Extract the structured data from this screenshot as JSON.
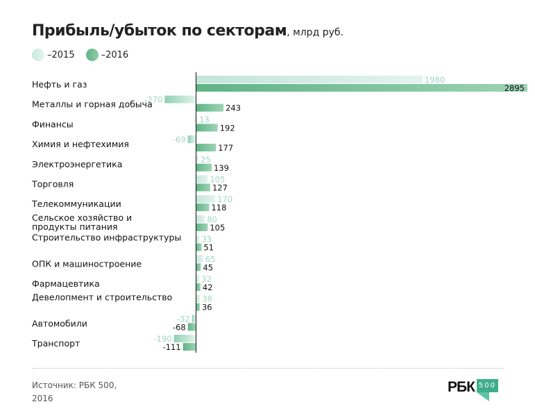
{
  "chart_data": {
    "type": "bar",
    "orientation": "horizontal",
    "title": "Прибыль/убыток по секторам",
    "title_unit": ", млрд руб.",
    "categories": [
      "Нефть и газ",
      "Металлы и горная добыча",
      "Финансы",
      "Химия и нефтехимия",
      "Электроэнергетика",
      "Торговля",
      "Телекоммуникации",
      "Сельское хозяйство и продукты питания",
      "Строительство инфраструктуры",
      "ОПК и машиностроение",
      "Фармацевтика",
      "Девелопмент и строительство",
      "Автомобили",
      "Транспорт"
    ],
    "series": [
      {
        "name": "2015",
        "legend": "–2015",
        "color": "#c7e8dd",
        "label_color": "#9fd6c4",
        "values": [
          1980,
          -270,
          13,
          -69,
          25,
          105,
          170,
          80,
          33,
          65,
          32,
          38,
          -32,
          -190
        ]
      },
      {
        "name": "2016",
        "legend": "–2016",
        "color": "#6cb98f",
        "label_color": "#111111",
        "values": [
          2895,
          243,
          192,
          177,
          139,
          127,
          118,
          105,
          51,
          45,
          42,
          36,
          -68,
          -111
        ]
      }
    ],
    "xlim": [
      -270,
      2895
    ],
    "grid": false,
    "legend_position": "top-left"
  },
  "footer": {
    "source": "Источник: РБК 500, 2016",
    "logo_text": "РБК",
    "logo_badge": "500"
  }
}
